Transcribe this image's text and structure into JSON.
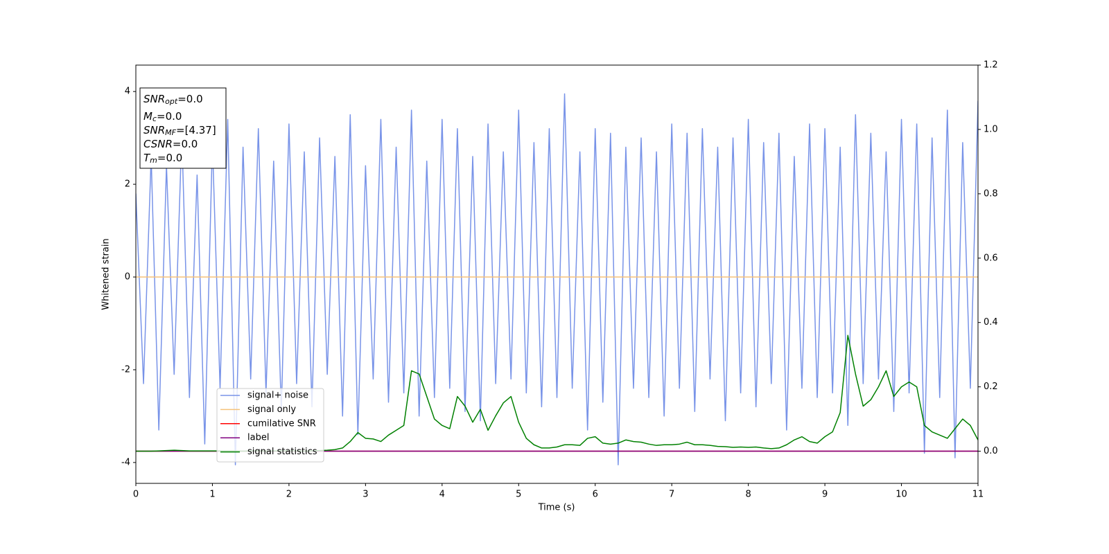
{
  "chart_data": {
    "type": "line",
    "xlabel": "Time (s)",
    "ylabel": "Whitened strain",
    "xlim": [
      0,
      11
    ],
    "ylim": [
      -4.45,
      4.57
    ],
    "y2lim": [
      -0.1,
      1.2
    ],
    "xticks": [
      0,
      1,
      2,
      3,
      4,
      5,
      6,
      7,
      8,
      9,
      10,
      11
    ],
    "yticks": [
      -4,
      -2,
      0,
      2,
      4
    ],
    "y2ticks": [
      {
        "value": 0,
        "label": "0.0"
      },
      {
        "value": 0.2,
        "label": "0.2"
      },
      {
        "value": 0.4,
        "label": "0.4"
      },
      {
        "value": 0.6,
        "label": "0.6"
      },
      {
        "value": 0.8,
        "label": "0.8"
      },
      {
        "value": 1.0,
        "label": "1.0"
      },
      {
        "value": 1.2,
        "label": "1.2"
      }
    ],
    "x": [
      0,
      0.1,
      0.2,
      0.3,
      0.4,
      0.5,
      0.6,
      0.7,
      0.8,
      0.9,
      1,
      1.1,
      1.2,
      1.3,
      1.4,
      1.5,
      1.6,
      1.7,
      1.8,
      1.9,
      2,
      2.1,
      2.2,
      2.3,
      2.4,
      2.5,
      2.6,
      2.7,
      2.8,
      2.9,
      3,
      3.1,
      3.2,
      3.3,
      3.4,
      3.5,
      3.6,
      3.7,
      3.8,
      3.9,
      4,
      4.1,
      4.2,
      4.3,
      4.4,
      4.5,
      4.6,
      4.7,
      4.8,
      4.9,
      5,
      5.1,
      5.2,
      5.3,
      5.4,
      5.5,
      5.6,
      5.7,
      5.8,
      5.9,
      6,
      6.1,
      6.2,
      6.3,
      6.4,
      6.5,
      6.6,
      6.7,
      6.8,
      6.9,
      7,
      7.1,
      7.2,
      7.3,
      7.4,
      7.5,
      7.6,
      7.7,
      7.8,
      7.9,
      8,
      8.1,
      8.2,
      8.3,
      8.4,
      8.5,
      8.6,
      8.7,
      8.8,
      8.9,
      9,
      9.1,
      9.2,
      9.3,
      9.4,
      9.5,
      9.6,
      9.7,
      9.8,
      9.9,
      10,
      10.1,
      10.2,
      10.3,
      10.4,
      10.5,
      10.6,
      10.7,
      10.8,
      10.9,
      11
    ],
    "series": [
      {
        "name": "signal+ noise",
        "color": "#7893e8",
        "values": [
          1.8,
          -2.3,
          2.6,
          -3.3,
          2.4,
          -2.1,
          3.1,
          -2.6,
          2.2,
          -3.6,
          2.9,
          -2.4,
          3.4,
          -4.05,
          2.8,
          -2.2,
          3.2,
          -2.5,
          2.5,
          -2.9,
          3.3,
          -2.3,
          2.7,
          -2.8,
          3.0,
          -2.1,
          2.6,
          -3.0,
          3.5,
          -3.4,
          2.4,
          -2.2,
          3.4,
          -2.7,
          2.8,
          -2.5,
          3.6,
          -3.0,
          2.5,
          -2.6,
          3.4,
          -2.4,
          3.2,
          -2.9,
          2.6,
          -3.1,
          3.3,
          -2.3,
          2.7,
          -2.2,
          3.6,
          -2.5,
          2.9,
          -2.8,
          3.2,
          -2.6,
          3.95,
          -2.4,
          2.7,
          -3.3,
          3.2,
          -2.7,
          3.1,
          -4.05,
          2.8,
          -2.4,
          3.0,
          -2.6,
          2.7,
          -3.0,
          3.3,
          -2.4,
          3.1,
          -2.9,
          3.2,
          -2.2,
          2.8,
          -3.1,
          3.0,
          -2.5,
          3.4,
          -2.8,
          2.9,
          -2.3,
          3.1,
          -3.3,
          2.6,
          -2.4,
          3.3,
          -2.6,
          3.2,
          -2.5,
          2.8,
          -3.2,
          3.5,
          -2.3,
          3.1,
          -2.2,
          2.7,
          -2.9,
          3.4,
          -2.5,
          3.3,
          -3.8,
          3.0,
          -2.6,
          3.6,
          -3.9,
          2.9,
          -2.4,
          3.8
        ]
      },
      {
        "name": "signal only",
        "color": "#f5c27a",
        "x": [
          0,
          11
        ],
        "values": [
          0,
          0
        ]
      },
      {
        "name": "cumilative SNR",
        "color": "#ff0000",
        "axis": "y2",
        "x": [
          0,
          11
        ],
        "values": [
          0,
          0
        ]
      },
      {
        "name": "label",
        "color": "#800080",
        "axis": "y2",
        "x": [
          0,
          11
        ],
        "values": [
          0,
          0
        ]
      },
      {
        "name": "signal statistics",
        "color": "#008000",
        "axis": "y2",
        "values": [
          0,
          0,
          0,
          0.001,
          0.002,
          0.003,
          0.002,
          0.001,
          0.001,
          0.001,
          0.001,
          0.001,
          0.001,
          0.001,
          0,
          0.001,
          0.001,
          0,
          0.001,
          0.001,
          0.001,
          0.001,
          0,
          0.001,
          0.002,
          0.003,
          0.005,
          0.01,
          0.03,
          0.058,
          0.04,
          0.038,
          0.03,
          0.05,
          0.065,
          0.08,
          0.25,
          0.24,
          0.17,
          0.1,
          0.08,
          0.07,
          0.17,
          0.14,
          0.09,
          0.13,
          0.065,
          0.11,
          0.15,
          0.17,
          0.09,
          0.04,
          0.02,
          0.01,
          0.01,
          0.013,
          0.02,
          0.02,
          0.018,
          0.04,
          0.045,
          0.025,
          0.022,
          0.025,
          0.035,
          0.03,
          0.028,
          0.022,
          0.018,
          0.02,
          0.02,
          0.022,
          0.028,
          0.02,
          0.02,
          0.018,
          0.015,
          0.014,
          0.012,
          0.013,
          0.012,
          0.013,
          0.01,
          0.008,
          0.01,
          0.02,
          0.035,
          0.045,
          0.03,
          0.025,
          0.045,
          0.06,
          0.12,
          0.36,
          0.24,
          0.14,
          0.16,
          0.2,
          0.25,
          0.17,
          0.2,
          0.215,
          0.2,
          0.08,
          0.06,
          0.05,
          0.04,
          0.07,
          0.1,
          0.08,
          0.035
        ]
      }
    ],
    "annotations": [
      {
        "name": "SNR",
        "subscript": "opt",
        "value": "=0.0"
      },
      {
        "name": "M",
        "subscript": "c",
        "value": "=0.0"
      },
      {
        "name": "SNR",
        "subscript": "MF",
        "value": "=[4.37]"
      },
      {
        "name": "CSNR",
        "value": "=0.0"
      },
      {
        "name": "T",
        "subscript": "m",
        "value": "=0.0"
      }
    ]
  }
}
